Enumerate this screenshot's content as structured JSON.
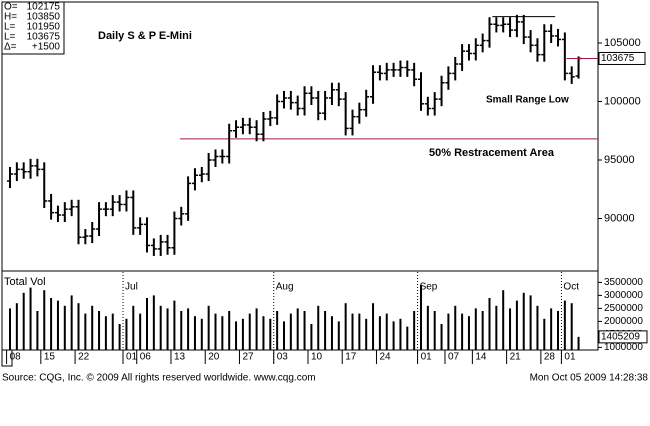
{
  "chart_data": {
    "type": "ohlc",
    "title": "Daily S & P E-Mini",
    "annotations": {
      "support_label": "50% Restracement Area",
      "low_label": "Small Range Low",
      "support_line": 96800,
      "resistance_line": 107250
    },
    "header_labels": [
      "O=",
      "H=",
      "L=",
      "L=",
      "Δ="
    ],
    "change": {
      "value": 1500,
      "label": "+1500"
    },
    "volume_title": "Total Vol",
    "source": "Source: CQG, Inc. © 2009 All rights reserved worldwide.  www.cqg.com",
    "timestamp": "Mon Oct 05 2009 14:28:38",
    "categories": [
      "08",
      null,
      null,
      null,
      null,
      "15",
      null,
      null,
      null,
      null,
      "22",
      null,
      null,
      null,
      null,
      null,
      null,
      "01",
      null,
      "06",
      null,
      null,
      null,
      null,
      "13",
      null,
      null,
      null,
      null,
      "20",
      null,
      null,
      null,
      null,
      "27",
      null,
      null,
      null,
      null,
      "03",
      null,
      null,
      null,
      null,
      "10",
      null,
      null,
      null,
      null,
      "17",
      null,
      null,
      null,
      null,
      "24",
      null,
      null,
      null,
      null,
      null,
      "01",
      null,
      null,
      null,
      "07",
      null,
      null,
      null,
      "14",
      null,
      null,
      null,
      null,
      "21",
      null,
      null,
      null,
      null,
      "28",
      null,
      null,
      "01",
      null,
      null
    ],
    "months": [
      null,
      null,
      null,
      null,
      null,
      null,
      null,
      null,
      null,
      null,
      null,
      null,
      null,
      null,
      null,
      null,
      null,
      "Jul",
      null,
      null,
      null,
      null,
      null,
      null,
      null,
      null,
      null,
      null,
      null,
      null,
      null,
      null,
      null,
      null,
      null,
      null,
      null,
      null,
      null,
      "Aug",
      null,
      null,
      null,
      null,
      null,
      null,
      null,
      null,
      null,
      null,
      null,
      null,
      null,
      null,
      null,
      null,
      null,
      null,
      null,
      null,
      "Sep",
      null,
      null,
      null,
      null,
      null,
      null,
      null,
      null,
      null,
      null,
      null,
      null,
      null,
      null,
      null,
      null,
      null,
      null,
      null,
      null,
      "Oct",
      null,
      null
    ],
    "open": [
      93200,
      93800,
      94200,
      94000,
      94500,
      94200,
      91500,
      90500,
      90300,
      90800,
      91000,
      88400,
      88500,
      89100,
      90800,
      90800,
      91400,
      91200,
      91800,
      89200,
      89500,
      87700,
      87400,
      88000,
      87500,
      90000,
      90400,
      93000,
      93700,
      93800,
      95000,
      95300,
      95300,
      97500,
      97800,
      98000,
      97800,
      97200,
      98500,
      98600,
      100000,
      100300,
      99900,
      99400,
      100700,
      100300,
      99000,
      100300,
      101000,
      100200,
      97700,
      98700,
      99300,
      100400,
      102500,
      102400,
      102700,
      102700,
      102900,
      102700,
      101900,
      99800,
      99400,
      100200,
      101600,
      102400,
      103200,
      104300,
      104100,
      104800,
      105200,
      106600,
      106500,
      106600,
      106100,
      106800,
      105500,
      104800,
      104000,
      106000,
      105600,
      105300,
      102400,
      102175
    ],
    "high": [
      94400,
      94800,
      94800,
      95100,
      95100,
      94800,
      92100,
      91100,
      91400,
      91600,
      91600,
      89100,
      89700,
      91400,
      91400,
      92000,
      92000,
      92400,
      92400,
      90100,
      90100,
      88300,
      88600,
      88600,
      90600,
      91000,
      93600,
      94300,
      94400,
      95600,
      95900,
      95900,
      98100,
      98400,
      98600,
      98600,
      98400,
      99100,
      99200,
      100600,
      100900,
      100900,
      100500,
      101300,
      101300,
      100900,
      100900,
      101600,
      101600,
      100800,
      99300,
      99900,
      101000,
      103100,
      103100,
      103300,
      103300,
      103500,
      103500,
      103300,
      102500,
      100400,
      100800,
      102200,
      103000,
      103800,
      104900,
      104900,
      105400,
      105800,
      107200,
      107200,
      107200,
      107200,
      107400,
      107400,
      106100,
      105400,
      106600,
      106600,
      106200,
      105900,
      103000,
      103850
    ],
    "low": [
      92600,
      93200,
      93400,
      93400,
      93600,
      90900,
      89900,
      89700,
      89700,
      90200,
      87800,
      87800,
      87900,
      88500,
      90200,
      90200,
      90600,
      90600,
      88600,
      88600,
      87100,
      86800,
      86800,
      86900,
      86900,
      89400,
      89800,
      92400,
      93100,
      93200,
      94400,
      94700,
      94700,
      96900,
      97200,
      97200,
      96600,
      96600,
      97900,
      98000,
      99400,
      99300,
      98800,
      98800,
      99700,
      98400,
      98400,
      99700,
      99600,
      97100,
      97100,
      98100,
      98700,
      99800,
      101800,
      101800,
      102100,
      102100,
      102100,
      101300,
      99200,
      98800,
      98800,
      99600,
      101000,
      101800,
      102600,
      103500,
      103500,
      104200,
      104600,
      105900,
      105900,
      105500,
      105500,
      104900,
      104200,
      103400,
      103400,
      105000,
      104700,
      101800,
      101500,
      101950
    ],
    "close": [
      93800,
      94200,
      94000,
      94500,
      94200,
      91500,
      90500,
      90300,
      90800,
      91000,
      88400,
      88500,
      89100,
      90800,
      90800,
      91400,
      91200,
      91800,
      89200,
      89500,
      87700,
      87400,
      88000,
      87500,
      90000,
      90400,
      93000,
      93700,
      93800,
      95000,
      95300,
      95300,
      97500,
      97800,
      98000,
      97800,
      97200,
      98500,
      98600,
      100000,
      100300,
      99900,
      99400,
      100700,
      100300,
      99000,
      100300,
      101000,
      100200,
      97700,
      98700,
      99300,
      100400,
      102500,
      102400,
      102700,
      102700,
      102900,
      102700,
      101900,
      99800,
      99400,
      100200,
      101600,
      102400,
      103200,
      104300,
      104100,
      104800,
      105200,
      106600,
      106500,
      106600,
      106100,
      106800,
      105500,
      104800,
      104000,
      106000,
      105600,
      105300,
      102400,
      102100,
      103675
    ],
    "volume": [
      2500000,
      2700000,
      3100000,
      3300000,
      2400000,
      3200000,
      2900000,
      2800000,
      2600000,
      3000000,
      2700000,
      2300000,
      2600000,
      2400000,
      2200000,
      2300000,
      1900000,
      2100000,
      2600000,
      2300000,
      2900000,
      3000000,
      2600000,
      2500000,
      2800000,
      2400000,
      2500000,
      2200000,
      2100000,
      2600000,
      2300000,
      2200000,
      2400000,
      2000000,
      2100000,
      2300000,
      2500000,
      2200000,
      2100000,
      2400000,
      2000000,
      2300000,
      2500000,
      2400000,
      1900000,
      2600000,
      2400000,
      2200000,
      2000000,
      2700000,
      2300000,
      2300000,
      2100000,
      2700000,
      2200000,
      2300000,
      2000000,
      2100000,
      1800000,
      2400000,
      3400000,
      2600000,
      2400000,
      1900000,
      2300000,
      2600000,
      2300000,
      2200000,
      2500000,
      2400000,
      2900000,
      2600000,
      3200000,
      2500000,
      2800000,
      3100000,
      3000000,
      2600000,
      2100000,
      2500000,
      2400000,
      2800000,
      2700000,
      1405209
    ],
    "color": "#000000",
    "line_color": "#a0184e",
    "ylim": [
      85600,
      108500
    ],
    "yticks": [
      105000,
      100000,
      95000,
      90000
    ],
    "vol_ylim": [
      900000,
      3900000
    ],
    "vol_yticks": [
      3500000,
      3000000,
      2500000,
      2000000,
      1500000,
      1000000
    ]
  }
}
